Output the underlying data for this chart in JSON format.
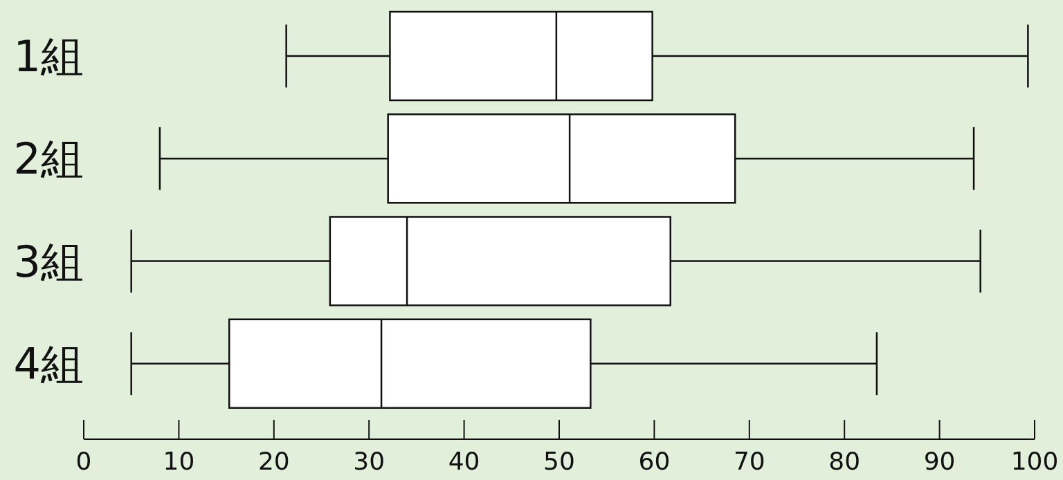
{
  "chart_data": {
    "type": "box",
    "orientation": "horizontal",
    "categories": [
      "1組",
      "2組",
      "3組",
      "4組"
    ],
    "boxes": [
      {
        "low": 21.3,
        "q1": 32.2,
        "median": 49.7,
        "q3": 59.8,
        "high": 99.3
      },
      {
        "low": 8.0,
        "q1": 32.0,
        "median": 51.1,
        "q3": 68.5,
        "high": 93.6
      },
      {
        "low": 5.0,
        "q1": 25.9,
        "median": 34.0,
        "q3": 61.7,
        "high": 94.3
      },
      {
        "low": 5.0,
        "q1": 15.3,
        "median": 31.3,
        "q3": 53.3,
        "high": 83.4
      }
    ],
    "color": "#ffffff",
    "xlim": [
      0,
      100
    ],
    "xticks": [
      0,
      10,
      20,
      30,
      40,
      50,
      60,
      70,
      80,
      90,
      100
    ]
  }
}
